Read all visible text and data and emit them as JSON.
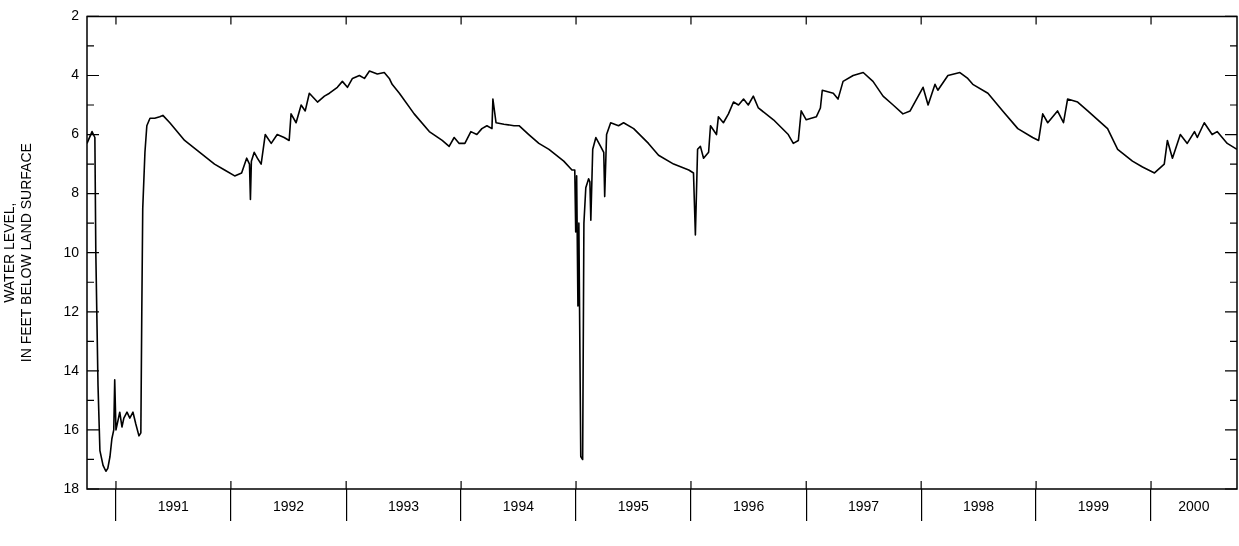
{
  "chart_data": {
    "type": "line",
    "ylabel": "WATER LEVEL,\nIN FEET BELOW LAND SURFACE",
    "xlim": [
      "1990-10-01",
      "2000-09-30"
    ],
    "xticks": [
      {
        "value": "1991-01-01",
        "label": null
      },
      {
        "value": "1991-07-02",
        "label": "1991"
      },
      {
        "value": "1992-01-01",
        "label": null
      },
      {
        "value": "1992-07-02",
        "label": "1992"
      },
      {
        "value": "1993-01-01",
        "label": null
      },
      {
        "value": "1993-07-02",
        "label": "1993"
      },
      {
        "value": "1994-01-01",
        "label": null
      },
      {
        "value": "1994-07-02",
        "label": "1994"
      },
      {
        "value": "1995-01-01",
        "label": null
      },
      {
        "value": "1995-07-02",
        "label": "1995"
      },
      {
        "value": "1996-01-01",
        "label": null
      },
      {
        "value": "1996-07-02",
        "label": "1996"
      },
      {
        "value": "1997-01-01",
        "label": null
      },
      {
        "value": "1997-07-02",
        "label": "1997"
      },
      {
        "value": "1998-01-01",
        "label": null
      },
      {
        "value": "1998-07-02",
        "label": "1998"
      },
      {
        "value": "1999-01-01",
        "label": null
      },
      {
        "value": "1999-07-02",
        "label": "1999"
      },
      {
        "value": "2000-01-01",
        "label": null
      },
      {
        "value": "2000-05-16",
        "label": "2000"
      }
    ],
    "ylim": [
      18,
      2
    ],
    "yticks": [
      2,
      {
        "value": 3,
        "label": null
      },
      4,
      {
        "value": 5,
        "label": null
      },
      6,
      {
        "value": 7,
        "label": null
      },
      8,
      {
        "value": 9,
        "label": null
      },
      10,
      {
        "value": 11,
        "label": null
      },
      12,
      {
        "value": 13,
        "label": null
      },
      14,
      {
        "value": 15,
        "label": null
      },
      16,
      {
        "value": 17,
        "label": null
      },
      18
    ],
    "grid": false,
    "legend": false,
    "x": [
      "1990-10-01",
      "1990-10-17",
      "1990-10-26",
      "1990-10-29",
      "1990-11-05",
      "1990-11-11",
      "1990-11-21",
      "1990-11-30",
      "1990-12-06",
      "1990-12-13",
      "1990-12-19",
      "1990-12-25",
      "1990-12-28",
      "1991-01-01",
      "1991-01-07",
      "1991-01-13",
      "1991-01-20",
      "1991-01-26",
      "1991-02-05",
      "1991-02-14",
      "1991-02-24",
      "1991-03-05",
      "1991-03-15",
      "1991-03-21",
      "1991-03-24",
      "1991-03-27",
      "1991-04-03",
      "1991-04-09",
      "1991-04-19",
      "1991-05-04",
      "1991-05-20",
      "1991-05-30",
      "1991-06-21",
      "1991-08-07",
      "1991-09-24",
      "1991-11-10",
      "1991-12-12",
      "1992-01-13",
      "1992-02-04",
      "1992-02-20",
      "1992-02-29",
      "1992-03-03",
      "1992-03-06",
      "1992-03-15",
      "1992-03-25",
      "1992-04-06",
      "1992-04-19",
      "1992-05-08",
      "1992-05-27",
      "1992-06-18",
      "1992-07-04",
      "1992-07-10",
      "1992-07-26",
      "1992-08-11",
      "1992-08-24",
      "1992-09-06",
      "1992-10-02",
      "1992-10-24",
      "1992-11-09",
      "1992-12-04",
      "1992-12-20",
      "1993-01-05",
      "1993-01-21",
      "1993-02-12",
      "1993-02-28",
      "1993-03-16",
      "1993-04-10",
      "1993-05-02",
      "1993-05-18",
      "1993-05-27",
      "1993-06-19",
      "1993-08-05",
      "1993-09-22",
      "1993-11-02",
      "1993-11-24",
      "1993-12-10",
      "1993-12-26",
      "1994-01-13",
      "1994-02-01",
      "1994-02-20",
      "1994-03-08",
      "1994-03-24",
      "1994-04-09",
      "1994-04-12",
      "1994-04-22",
      "1994-05-17",
      "1994-06-18",
      "1994-07-04",
      "1994-08-04",
      "1994-09-05",
      "1994-10-07",
      "1994-11-23",
      "1994-12-19",
      "1994-12-28",
      "1994-12-31",
      "1995-01-03",
      "1995-01-07",
      "1995-01-10",
      "1995-01-16",
      "1995-01-22",
      "1995-01-26",
      "1995-02-01",
      "1995-02-10",
      "1995-02-14",
      "1995-02-17",
      "1995-02-23",
      "1995-03-05",
      "1995-03-20",
      "1995-03-30",
      "1995-04-02",
      "1995-04-08",
      "1995-04-21",
      "1995-05-16",
      "1995-06-01",
      "1995-07-03",
      "1995-08-19",
      "1995-09-20",
      "1995-11-07",
      "1995-12-25",
      "1996-01-09",
      "1996-01-15",
      "1996-01-22",
      "1996-01-31",
      "1996-02-10",
      "1996-02-26",
      "1996-03-03",
      "1996-03-22",
      "1996-03-28",
      "1996-04-13",
      "1996-04-29",
      "1996-05-15",
      "1996-05-31",
      "1996-06-16",
      "1996-07-01",
      "1996-07-17",
      "1996-08-02",
      "1996-09-19",
      "1996-11-05",
      "1996-11-21",
      "1996-12-07",
      "1996-12-16",
      "1997-01-01",
      "1997-02-02",
      "1997-02-15",
      "1997-02-21",
      "1997-03-28",
      "1997-04-12",
      "1997-04-28",
      "1997-05-30",
      "1997-07-01",
      "1997-08-01",
      "1997-09-02",
      "1997-10-04",
      "1997-11-04",
      "1997-11-27",
      "1998-01-07",
      "1998-01-23",
      "1998-02-14",
      "1998-02-23",
      "1998-03-27",
      "1998-05-04",
      "1998-05-29",
      "1998-06-14",
      "1998-08-01",
      "1998-09-17",
      "1998-11-04",
      "1998-12-21",
      "1999-01-09",
      "1999-01-22",
      "1999-02-07",
      "1999-03-10",
      "1999-03-29",
      "1999-04-11",
      "1999-05-13",
      "1999-06-14",
      "1999-08-16",
      "1999-09-17",
      "1999-11-03",
      "1999-12-05",
      "2000-01-12",
      "2000-02-12",
      "2000-02-22",
      "2000-03-09",
      "2000-04-03",
      "2000-04-25",
      "2000-05-18",
      "2000-05-27",
      "2000-06-18",
      "2000-07-13",
      "2000-07-29",
      "2000-08-30",
      "2000-09-30"
    ],
    "series": [
      {
        "color": "#000000",
        "values": [
          6.3,
          5.9,
          6.1,
          10.0,
          14.5,
          16.7,
          17.2,
          17.4,
          17.3,
          16.9,
          16.3,
          16.0,
          14.3,
          16.0,
          15.7,
          15.4,
          15.9,
          15.6,
          15.4,
          15.6,
          15.4,
          15.8,
          16.2,
          16.1,
          12.0,
          8.5,
          6.6,
          5.7,
          5.45,
          5.45,
          5.4,
          5.35,
          5.6,
          6.2,
          6.6,
          7.0,
          7.2,
          7.4,
          7.3,
          6.8,
          7.0,
          8.2,
          6.9,
          6.6,
          6.8,
          7.0,
          6.0,
          6.3,
          6.0,
          6.1,
          6.2,
          5.3,
          5.6,
          5.0,
          5.2,
          4.6,
          4.9,
          4.7,
          4.6,
          4.4,
          4.2,
          4.4,
          4.1,
          4.0,
          4.1,
          3.85,
          3.95,
          3.9,
          4.1,
          4.3,
          4.6,
          5.3,
          5.9,
          6.2,
          6.4,
          6.1,
          6.3,
          6.3,
          5.9,
          6.0,
          5.8,
          5.7,
          5.8,
          4.8,
          5.6,
          5.65,
          5.7,
          5.7,
          6.0,
          6.3,
          6.5,
          6.9,
          7.2,
          7.2,
          9.3,
          7.4,
          11.8,
          9.0,
          16.9,
          17.0,
          9.0,
          7.8,
          7.5,
          7.6,
          8.9,
          6.5,
          6.1,
          6.4,
          6.6,
          8.1,
          6.0,
          5.6,
          5.7,
          5.6,
          5.8,
          6.3,
          6.7,
          7.0,
          7.2,
          7.3,
          9.4,
          6.5,
          6.4,
          6.8,
          6.6,
          5.7,
          6.0,
          5.4,
          5.6,
          5.3,
          4.9,
          5.0,
          4.8,
          5.0,
          4.7,
          5.1,
          5.5,
          6.0,
          6.3,
          6.2,
          5.2,
          5.5,
          5.4,
          5.1,
          4.5,
          4.6,
          4.8,
          4.2,
          4.0,
          3.9,
          4.2,
          4.7,
          5.0,
          5.3,
          5.2,
          4.4,
          5.0,
          4.3,
          4.5,
          4.0,
          3.9,
          4.1,
          4.3,
          4.6,
          5.2,
          5.8,
          6.1,
          6.2,
          5.3,
          5.6,
          5.2,
          5.6,
          4.8,
          4.9,
          5.2,
          5.8,
          6.5,
          6.9,
          7.1,
          7.3,
          7.0,
          6.2,
          6.8,
          6.0,
          6.3,
          5.9,
          6.1,
          5.6,
          6.0,
          5.9,
          6.3,
          6.5
        ]
      }
    ]
  }
}
